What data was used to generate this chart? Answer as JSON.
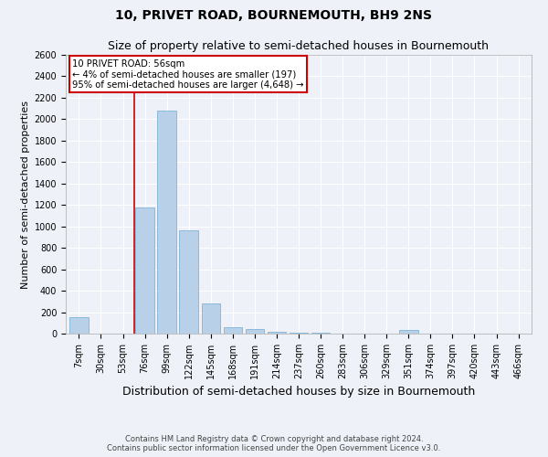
{
  "title": "10, PRIVET ROAD, BOURNEMOUTH, BH9 2NS",
  "subtitle": "Size of property relative to semi-detached houses in Bournemouth",
  "xlabel": "Distribution of semi-detached houses by size in Bournemouth",
  "ylabel": "Number of semi-detached properties",
  "footer_line1": "Contains HM Land Registry data © Crown copyright and database right 2024.",
  "footer_line2": "Contains public sector information licensed under the Open Government Licence v3.0.",
  "categories": [
    "7sqm",
    "30sqm",
    "53sqm",
    "76sqm",
    "99sqm",
    "122sqm",
    "145sqm",
    "168sqm",
    "191sqm",
    "214sqm",
    "237sqm",
    "260sqm",
    "283sqm",
    "306sqm",
    "329sqm",
    "351sqm",
    "374sqm",
    "397sqm",
    "420sqm",
    "443sqm",
    "466sqm"
  ],
  "values": [
    150,
    0,
    0,
    1180,
    2080,
    960,
    280,
    60,
    40,
    20,
    10,
    5,
    2,
    0,
    0,
    30,
    0,
    0,
    0,
    0,
    0
  ],
  "bar_color": "#b8d0e8",
  "bar_edge_color": "#6daad4",
  "property_line_index": 2.5,
  "annotation_title": "10 PRIVET ROAD: 56sqm",
  "annotation_line1": "← 4% of semi-detached houses are smaller (197)",
  "annotation_line2": "95% of semi-detached houses are larger (4,648) →",
  "annotation_box_color": "#cc0000",
  "ylim": [
    0,
    2600
  ],
  "yticks": [
    0,
    200,
    400,
    600,
    800,
    1000,
    1200,
    1400,
    1600,
    1800,
    2000,
    2200,
    2400,
    2600
  ],
  "background_color": "#eef2f8",
  "grid_color": "#ffffff",
  "title_fontsize": 10,
  "subtitle_fontsize": 9,
  "tick_fontsize": 7,
  "ylabel_fontsize": 8,
  "xlabel_fontsize": 9,
  "footer_fontsize": 6
}
